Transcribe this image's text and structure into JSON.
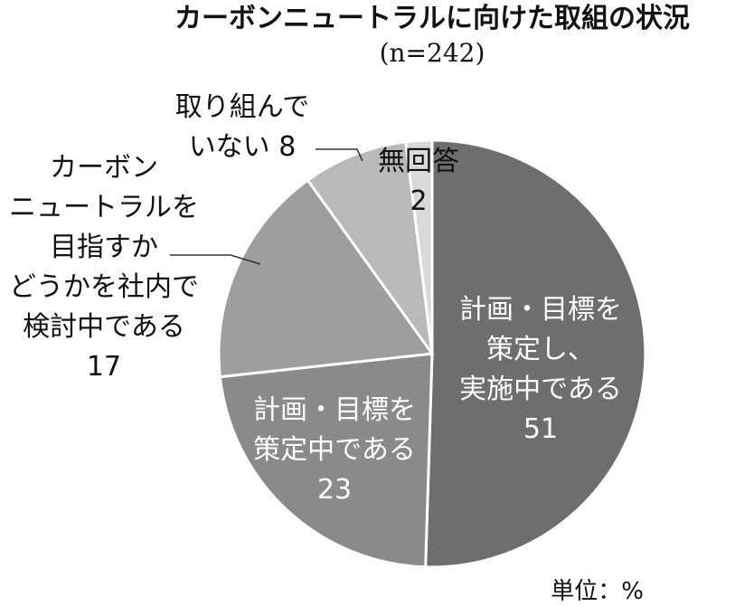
{
  "chart_data": {
    "type": "pie",
    "title": "カーボンニュートラルに向けた取組の状況",
    "subtitle": "(n=242)",
    "unit_label": "単位：%",
    "slices": [
      {
        "label_lines": [
          "計画・目標を",
          "策定し、",
          "実施中である"
        ],
        "value": 51,
        "color": "#6e6e6e"
      },
      {
        "label_lines": [
          "計画・目標を",
          "策定中である"
        ],
        "value": 23,
        "color": "#8a8a8a"
      },
      {
        "label_lines": [
          "カーボン",
          "ニュートラルを",
          "目指すか",
          "どうかを社内で",
          "検討中である"
        ],
        "value": 17,
        "color": "#9e9e9e"
      },
      {
        "label_lines": [
          "取り組んで",
          "いない"
        ],
        "value": 8,
        "color": "#b9b9b9"
      },
      {
        "label_lines": [
          "無回答"
        ],
        "value": 2,
        "color": "#d9d9d9"
      }
    ]
  }
}
